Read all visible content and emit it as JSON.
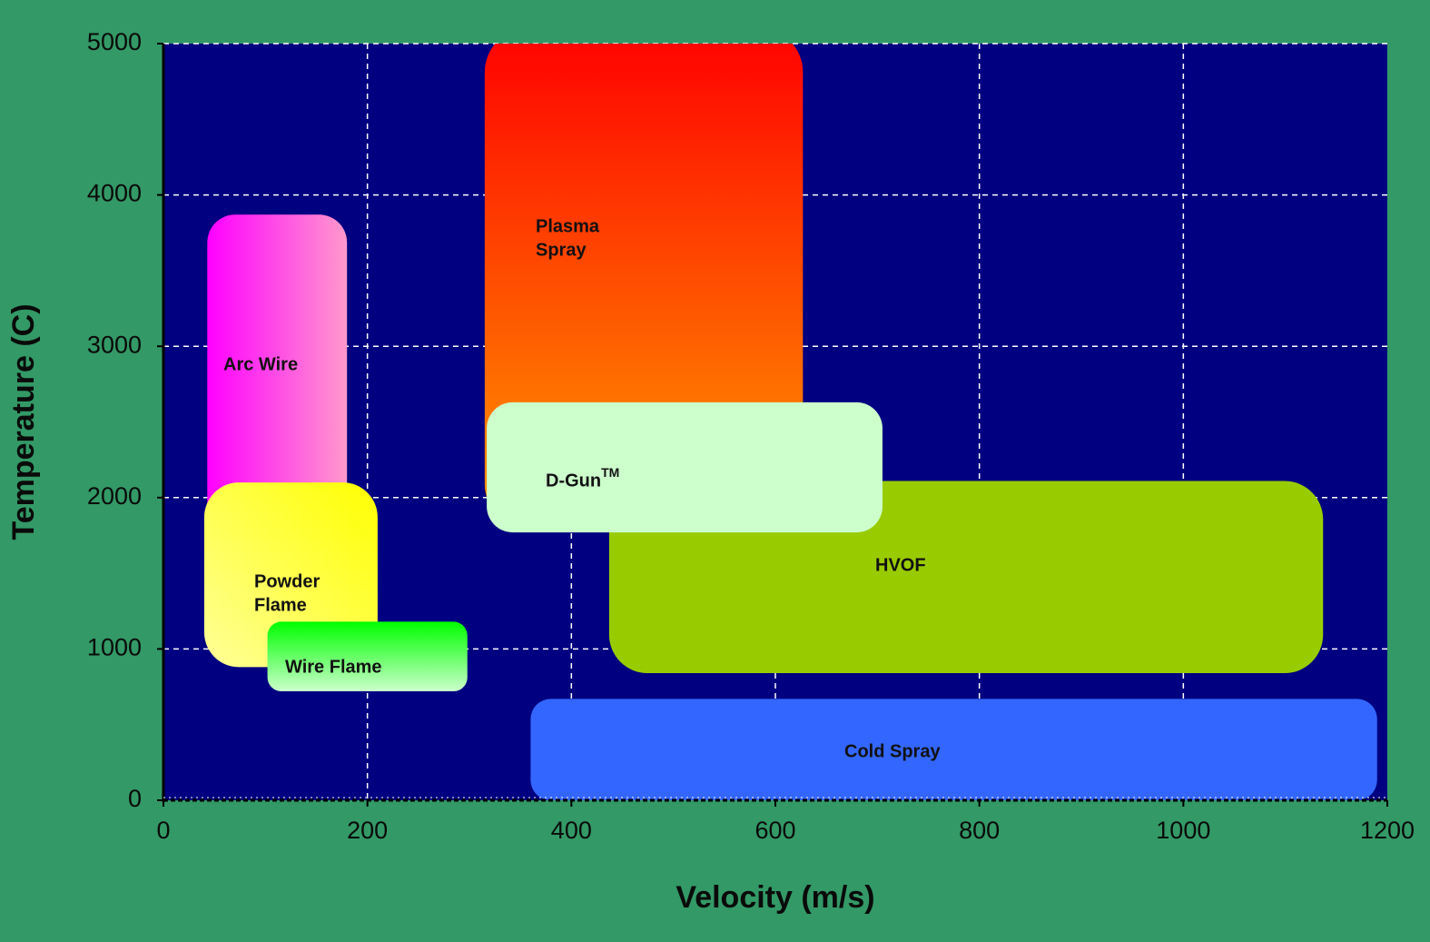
{
  "chart_data": {
    "type": "area",
    "title": "",
    "xlabel": "Velocity (m/s)",
    "ylabel": "Temperature (C)",
    "xlim": [
      0,
      1200
    ],
    "ylim": [
      0,
      5000
    ],
    "xticks": [
      0,
      200,
      400,
      600,
      800,
      1000,
      1200
    ],
    "yticks": [
      0,
      1000,
      2000,
      3000,
      4000,
      5000
    ],
    "grid": true,
    "background": "#000080",
    "frame_color": "#339966",
    "regions": [
      {
        "name": "Plasma Spray",
        "label_lines": [
          "Plasma",
          "Spray"
        ],
        "x": [
          315,
          627
        ],
        "y": [
          1800,
          5100
        ],
        "colors": [
          "#ff0000",
          "#ff9900"
        ],
        "gradient": "vertical"
      },
      {
        "name": "Arc Wire",
        "label_lines": [
          "Arc Wire"
        ],
        "x": [
          43,
          180
        ],
        "y": [
          1700,
          3870
        ],
        "colors": [
          "#ff00ff",
          "#ff99cc"
        ],
        "gradient": "horizontal"
      },
      {
        "name": "Powder Flame",
        "label_lines": [
          "Powder",
          "Flame"
        ],
        "x": [
          40,
          210
        ],
        "y": [
          880,
          2100
        ],
        "colors": [
          "#ffff00",
          "#ffff99"
        ],
        "gradient": "diagonal"
      },
      {
        "name": "Wire Flame",
        "label_lines": [
          "Wire Flame"
        ],
        "x": [
          102,
          298
        ],
        "y": [
          720,
          1180
        ],
        "colors": [
          "#00ff00",
          "#ccffcc"
        ],
        "gradient": "vertical"
      },
      {
        "name": "HVOF",
        "label_lines": [
          "HVOF"
        ],
        "x": [
          437,
          1137
        ],
        "y": [
          840,
          2110
        ],
        "colors": [
          "#99cc00",
          "#99cc00"
        ],
        "gradient": "none"
      },
      {
        "name": "D-Gun",
        "label_lines": [
          "D-Gun"
        ],
        "superscript": "TM",
        "x": [
          317,
          705
        ],
        "y": [
          1770,
          2630
        ],
        "colors": [
          "#ccffcc",
          "#ccffcc"
        ],
        "gradient": "none"
      },
      {
        "name": "Cold Spray",
        "label_lines": [
          "Cold Spray"
        ],
        "x": [
          360,
          1190
        ],
        "y": [
          0,
          670
        ],
        "colors": [
          "#3366ff",
          "#3366ff"
        ],
        "gradient": "none"
      }
    ]
  }
}
